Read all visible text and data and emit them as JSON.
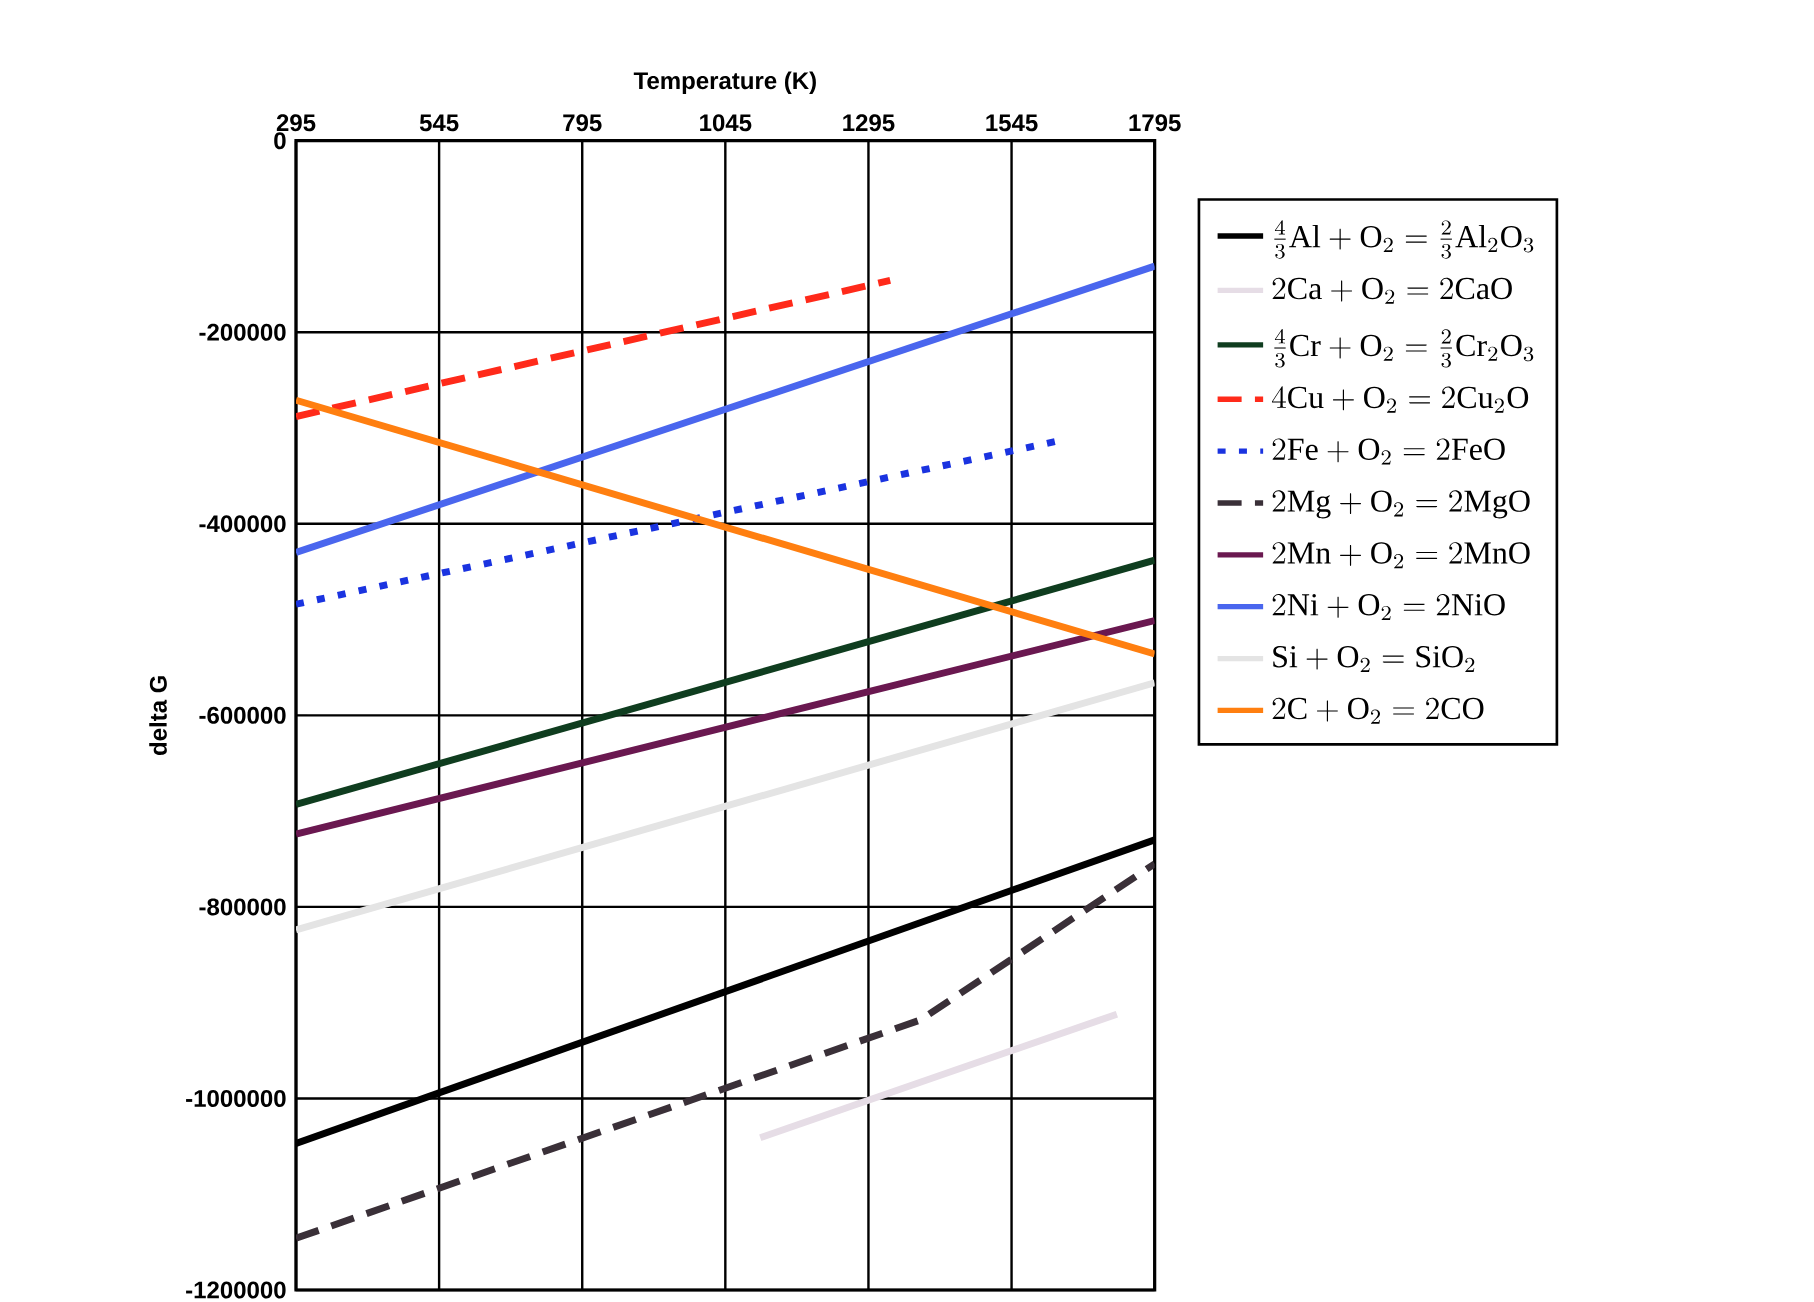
{
  "chart_data": {
    "type": "line",
    "xlabel": "Temperature (K)",
    "ylabel": "delta G",
    "xlim": [
      295,
      1795
    ],
    "xticks": [
      295,
      545,
      795,
      1045,
      1295,
      1545,
      1795
    ],
    "ylim": [
      -1200000,
      0
    ],
    "yticks": [
      -1200000,
      -1000000,
      -800000,
      -600000,
      -400000,
      -200000,
      0
    ],
    "grid": true,
    "legend": "right",
    "marker": "none",
    "series": [
      {
        "name": "\\frac{4}{3}\\mathrm{Al}+\\mathrm{O}_2=\\frac{2}{3}\\mathrm{Al}_2\\mathrm{O}_3",
        "color": "#000000",
        "line_style": "solid",
        "x": [
          295,
          1795
        ],
        "values": [
          -1047000,
          -730000
        ]
      },
      {
        "name": "2\\mathrm{Ca}+\\mathrm{O}_2=2\\mathrm{CaO}",
        "color": "#e6dde6",
        "line_style": "solid",
        "x": [
          1106,
          1729
        ],
        "values": [
          -1041000,
          -912000
        ]
      },
      {
        "name": "\\frac{4}{3}\\mathrm{Cr}+\\mathrm{O}_2=\\frac{2}{3}\\mathrm{Cr}_2\\mathrm{O}_3",
        "color": "#0f3d1f",
        "line_style": "solid",
        "x": [
          295,
          1795
        ],
        "values": [
          -693000,
          -438000
        ]
      },
      {
        "name": "4\\mathrm{Cu}+\\mathrm{O}_2=2\\mathrm{Cu}_2\\mathrm{O}",
        "color": "#ff2a1a",
        "line_style": "dashed",
        "x": [
          295,
          1333
        ],
        "values": [
          -288000,
          -146000
        ]
      },
      {
        "name": "2\\mathrm{Fe}+\\mathrm{O}_2=2\\mathrm{FeO}",
        "color": "#1a33e0",
        "line_style": "dotted",
        "x": [
          295,
          1631
        ],
        "values": [
          -484000,
          -313000
        ]
      },
      {
        "name": "2\\mathrm{Mg}+\\mathrm{O}_2=2\\mathrm{MgO}",
        "color": "#3a3038",
        "line_style": "dashed",
        "x": [
          295,
          1386,
          1795
        ],
        "values": [
          -1146000,
          -918000,
          -755000
        ]
      },
      {
        "name": "2\\mathrm{Mn}+\\mathrm{O}_2=2\\mathrm{MnO}",
        "color": "#6a1850",
        "line_style": "solid",
        "x": [
          295,
          1795
        ],
        "values": [
          -724000,
          -501000
        ]
      },
      {
        "name": "2\\mathrm{Ni}+\\mathrm{O}_2=2\\mathrm{NiO}",
        "color": "#4a66ee",
        "line_style": "solid",
        "x": [
          295,
          1795
        ],
        "values": [
          -430000,
          -131000
        ]
      },
      {
        "name": "\\mathrm{Si}+\\mathrm{O}_2=\\mathrm{SiO}_2",
        "color": "#e4e4e4",
        "line_style": "solid",
        "x": [
          295,
          1795
        ],
        "values": [
          -824000,
          -566000
        ]
      },
      {
        "name": "2\\mathrm{C}+\\mathrm{O}_2=2\\mathrm{CO}",
        "color": "#ff7f10",
        "line_style": "solid",
        "x": [
          295,
          1795
        ],
        "values": [
          -271000,
          -536000
        ]
      }
    ]
  }
}
